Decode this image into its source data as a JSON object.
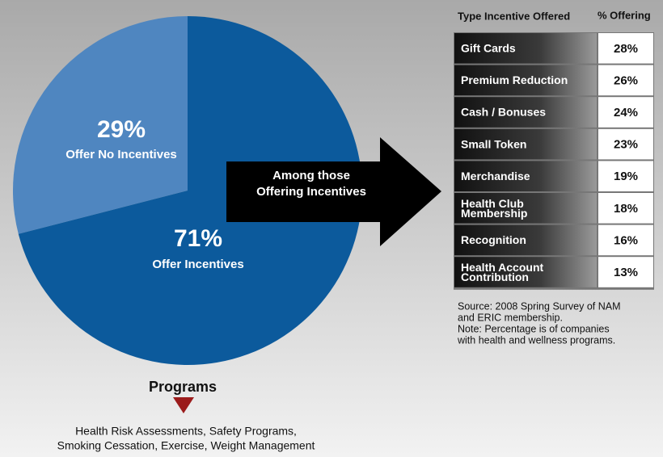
{
  "chart_data": {
    "type": "pie",
    "categories": [
      "Offer No Incentives",
      "Offer Incentives"
    ],
    "values": [
      29,
      71
    ],
    "value_labels": [
      "29%",
      "71%"
    ],
    "colors": [
      "#4f86c0",
      "#0c5a9c"
    ]
  },
  "arrow_label": [
    "Among those",
    "Offering Incentives"
  ],
  "table": {
    "headers": [
      "Type Incentive Offered",
      "% Offering"
    ],
    "rows": [
      [
        "Gift Cards",
        "28%"
      ],
      [
        "Premium Reduction",
        "26%"
      ],
      [
        "Cash / Bonuses",
        "24%"
      ],
      [
        "Small Token",
        "23%"
      ],
      [
        "Merchandise",
        "19%"
      ],
      [
        "Health Club|Membership",
        "18%"
      ],
      [
        "Recognition",
        "16%"
      ],
      [
        "Health Account|Contribution",
        "13%"
      ]
    ]
  },
  "note": [
    "Source: 2008 Spring Survey of NAM",
    "and ERIC membership.",
    "Note: Percentage is of companies",
    "with health and wellness programs."
  ],
  "programs": {
    "title": "Programs",
    "items": [
      "Health Risk Assessments, Safety Programs,",
      "Smoking Cessation, Exercise, Weight Management"
    ]
  }
}
